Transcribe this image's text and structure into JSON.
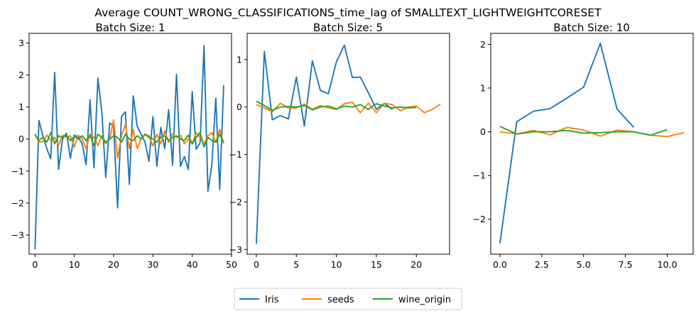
{
  "figure": {
    "suptitle": "Average COUNT_WRONG_CLASSIFICATIONS_time_lag of SMALLTEXT_LIGHTWEIGHTCORESET",
    "legend": [
      "Iris",
      "seeds",
      "wine_origin"
    ],
    "legend_location": "lower-center",
    "colors": {
      "Iris": "#1f77b4",
      "seeds": "#ff7f0e",
      "wine_origin": "#2ca02c"
    }
  },
  "chart_data": [
    {
      "type": "line",
      "title": "Batch Size: 1",
      "xlabel": "",
      "ylabel": "",
      "xlim": [
        -1.5,
        50.0
      ],
      "ylim": [
        -3.6,
        3.3
      ],
      "xticks": [
        0,
        10,
        20,
        30,
        40,
        50
      ],
      "xtick_labels": [
        "0",
        "10",
        "20",
        "30",
        "40",
        "50"
      ],
      "yticks": [
        -3,
        -2,
        -1,
        0,
        1,
        2,
        3
      ],
      "ytick_labels": [
        "−3",
        "−2",
        "−1",
        "0",
        "1",
        "2",
        "3"
      ],
      "grid": false,
      "series": [
        {
          "name": "Iris",
          "x": [
            0,
            1,
            2,
            3,
            4,
            5,
            6,
            7,
            8,
            9,
            10,
            11,
            12,
            13,
            14,
            15,
            16,
            17,
            18,
            19,
            20,
            21,
            22,
            23,
            24,
            25,
            26,
            27,
            28,
            29,
            30,
            31,
            32,
            33,
            34,
            35,
            36,
            37,
            38,
            39,
            40,
            41,
            42,
            43,
            44,
            45,
            46,
            47,
            48
          ],
          "y": [
            -3.45,
            0.58,
            0.1,
            -0.3,
            -0.62,
            2.08,
            -0.95,
            0.0,
            0.18,
            -0.6,
            0.12,
            0.06,
            -0.15,
            -0.8,
            1.22,
            -0.9,
            1.9,
            0.85,
            -1.2,
            0.5,
            0.4,
            -2.15,
            0.7,
            0.85,
            -1.42,
            1.35,
            0.4,
            0.15,
            -0.1,
            -0.7,
            0.7,
            -0.85,
            0.36,
            -0.3,
            0.92,
            -0.82,
            2.02,
            -0.85,
            -0.55,
            -0.95,
            1.48,
            -0.32,
            -0.12,
            2.92,
            -1.63,
            -0.8,
            1.28,
            -1.58,
            1.68
          ]
        },
        {
          "name": "seeds",
          "x": [
            0,
            1,
            2,
            3,
            4,
            5,
            6,
            7,
            8,
            9,
            10,
            11,
            12,
            13,
            14,
            15,
            16,
            17,
            18,
            19,
            20,
            21,
            22,
            23,
            24,
            25,
            26,
            27,
            28,
            29,
            30,
            31,
            32,
            33,
            34,
            35,
            36,
            37,
            38,
            39,
            40,
            41,
            42,
            43,
            44,
            45,
            46,
            47,
            48
          ],
          "y": [
            0.15,
            -0.1,
            -0.08,
            0.12,
            -0.05,
            0.05,
            -0.2,
            0.12,
            0.05,
            0.1,
            -0.25,
            0.12,
            0.0,
            -0.3,
            0.15,
            0.05,
            -0.2,
            0.1,
            -0.15,
            0.0,
            0.6,
            -0.6,
            0.1,
            0.45,
            -0.3,
            0.3,
            -0.3,
            0.0,
            0.15,
            0.1,
            -0.22,
            0.15,
            -0.15,
            0.25,
            -0.1,
            0.15,
            0.05,
            0.12,
            -0.15,
            0.0,
            -0.15,
            0.2,
            0.05,
            -0.15,
            0.1,
            0.2,
            -0.1,
            0.3,
            -0.15
          ]
        },
        {
          "name": "wine_origin",
          "x": [
            0,
            1,
            2,
            3,
            4,
            5,
            6,
            7,
            8,
            9,
            10,
            11,
            12,
            13,
            14,
            15,
            16,
            17,
            18,
            19,
            20,
            21,
            22,
            23,
            24,
            25,
            26,
            27,
            28,
            29,
            30,
            31,
            32,
            33,
            34,
            35,
            36,
            37,
            38,
            39,
            40,
            41,
            42,
            43,
            44,
            45,
            46,
            47,
            48
          ],
          "y": [
            0.15,
            -0.05,
            0.05,
            -0.1,
            0.2,
            -0.15,
            0.1,
            0.05,
            0.12,
            -0.05,
            0.08,
            0.0,
            0.1,
            -0.05,
            0.12,
            -0.2,
            0.15,
            0.05,
            -0.1,
            0.0,
            0.1,
            0.05,
            -0.1,
            0.15,
            0.0,
            -0.05,
            0.1,
            0.0,
            0.15,
            0.05,
            0.0,
            -0.1,
            0.05,
            0.1,
            -0.05,
            0.05,
            0.1,
            0.0,
            -0.05,
            0.12,
            -0.15,
            0.05,
            0.2,
            -0.25,
            0.05,
            -0.05,
            -0.1,
            0.15,
            -0.1
          ]
        }
      ]
    },
    {
      "type": "line",
      "title": "Batch Size: 5",
      "xlabel": "",
      "ylabel": "",
      "xlim": [
        -1.15,
        24.15
      ],
      "ylim": [
        -3.1,
        1.55
      ],
      "xticks": [
        0,
        5,
        10,
        15,
        20
      ],
      "xtick_labels": [
        "0",
        "5",
        "10",
        "15",
        "20"
      ],
      "yticks": [
        -3,
        -2,
        -1,
        0,
        1
      ],
      "ytick_labels": [
        "−3",
        "−2",
        "−1",
        "0",
        "1"
      ],
      "grid": false,
      "series": [
        {
          "name": "Iris",
          "x": [
            0,
            1,
            2,
            3,
            4,
            5,
            6,
            7,
            8,
            9,
            10,
            11,
            12,
            13,
            14,
            15,
            16,
            17
          ],
          "y": [
            -2.88,
            1.17,
            -0.27,
            -0.18,
            -0.25,
            0.63,
            -0.4,
            0.97,
            0.35,
            0.28,
            0.95,
            1.3,
            0.62,
            0.63,
            0.3,
            -0.05,
            0.08,
            -0.05
          ]
        },
        {
          "name": "seeds",
          "x": [
            0,
            1,
            2,
            3,
            4,
            5,
            6,
            7,
            8,
            9,
            10,
            11,
            12,
            13,
            14,
            15,
            16,
            17,
            18,
            19,
            20,
            21,
            22,
            23
          ],
          "y": [
            0.05,
            -0.02,
            -0.1,
            0.08,
            -0.02,
            -0.02,
            0.06,
            -0.05,
            0.03,
            -0.02,
            -0.05,
            0.07,
            0.1,
            -0.12,
            0.08,
            -0.12,
            0.08,
            0.05,
            -0.08,
            0.0,
            0.02,
            -0.12,
            -0.05,
            0.06
          ]
        },
        {
          "name": "wine_origin",
          "x": [
            0,
            1,
            2,
            3,
            4,
            5,
            6,
            7,
            8,
            9,
            10,
            11,
            12,
            13,
            14,
            15,
            16,
            17,
            18,
            19,
            20
          ],
          "y": [
            0.12,
            0.03,
            -0.07,
            0.0,
            0.01,
            0.0,
            0.03,
            -0.06,
            0.0,
            0.02,
            -0.04,
            0.02,
            0.0,
            0.05,
            -0.05,
            0.07,
            0.02,
            -0.02,
            0.0,
            -0.02,
            -0.01
          ]
        }
      ]
    },
    {
      "type": "line",
      "title": "Batch Size: 10",
      "xlabel": "",
      "ylabel": "",
      "xlim": [
        -0.55,
        11.55
      ],
      "ylim": [
        -2.8,
        2.25
      ],
      "xticks": [
        0,
        2.5,
        5,
        7.5,
        10
      ],
      "xtick_labels": [
        "0.0",
        "2.5",
        "5.0",
        "7.5",
        "10.0"
      ],
      "yticks": [
        -2,
        -1,
        0,
        1,
        2
      ],
      "ytick_labels": [
        "−2",
        "−1",
        "0",
        "1",
        "2"
      ],
      "grid": false,
      "series": [
        {
          "name": "Iris",
          "x": [
            0,
            1,
            2,
            3,
            4,
            5,
            6,
            7,
            8
          ],
          "y": [
            -2.55,
            0.23,
            0.47,
            0.53,
            0.77,
            1.02,
            2.02,
            0.52,
            0.1
          ]
        },
        {
          "name": "seeds",
          "x": [
            0,
            1,
            2,
            3,
            4,
            5,
            6,
            7,
            8,
            9,
            10,
            11
          ],
          "y": [
            0.0,
            -0.05,
            0.03,
            -0.07,
            0.1,
            0.04,
            -0.1,
            0.04,
            0.0,
            -0.08,
            -0.11,
            -0.02
          ]
        },
        {
          "name": "wine_origin",
          "x": [
            0,
            1,
            2,
            3,
            4,
            5,
            6,
            7,
            8,
            9,
            10
          ],
          "y": [
            0.12,
            -0.05,
            0.0,
            0.0,
            0.03,
            -0.03,
            -0.02,
            0.0,
            0.0,
            -0.08,
            0.05
          ]
        }
      ]
    }
  ]
}
